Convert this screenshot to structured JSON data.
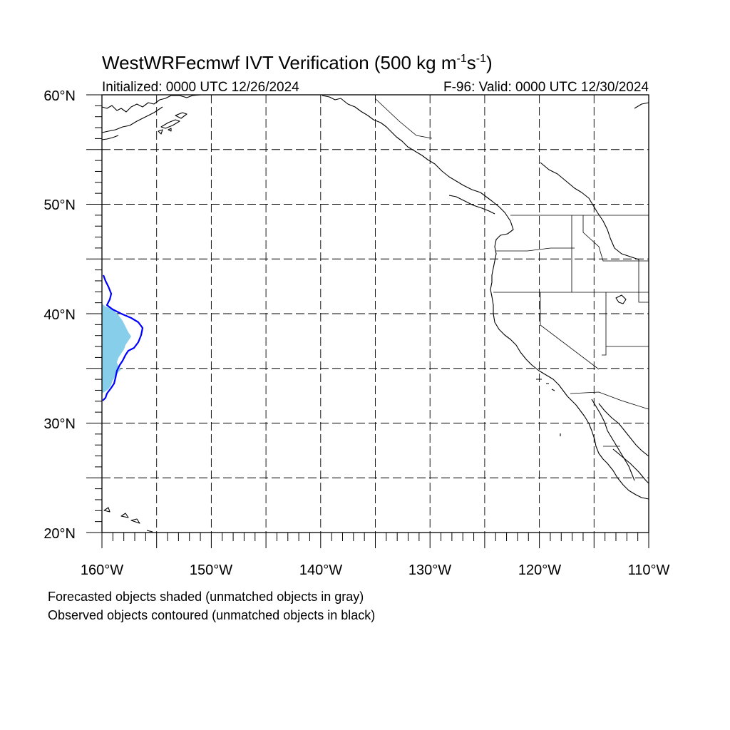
{
  "title": {
    "main": "WestWRFecmwf IVT Verification (500 kg m",
    "sup1": "-1",
    "mid": "s",
    "sup2": "-1",
    "end": ")"
  },
  "subtitle": {
    "left": "Initialized: 0000 UTC 12/26/2024",
    "right": "F-96: Valid: 0000 UTC 12/30/2024"
  },
  "map": {
    "lon_range": [
      -160,
      -110
    ],
    "lat_range": [
      20,
      60
    ],
    "projection": "cylindrical-equidistant",
    "grid": "dashed every 5 degrees",
    "lat_labels": [
      "20°N",
      "30°N",
      "40°N",
      "50°N",
      "60°N"
    ],
    "lon_labels": [
      "160°W",
      "150°W",
      "140°W",
      "130°W",
      "120°W",
      "110°W"
    ],
    "forecast_object_color": "#87ceeb",
    "observed_contour_color": "#0000ff",
    "coastline_color": "#000000"
  },
  "notes": {
    "line1": "Forecasted objects shaded (unmatched objects in gray)",
    "line2": "Observed objects contoured (unmatched objects in black)"
  }
}
